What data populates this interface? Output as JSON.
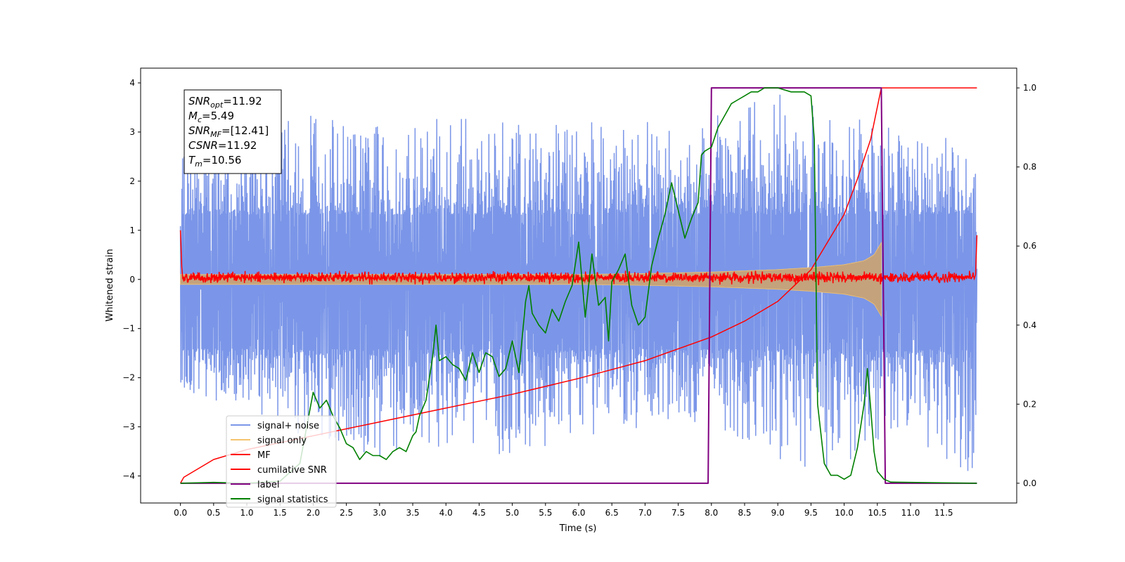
{
  "chart_data": {
    "type": "line",
    "xlabel": "Time (s)",
    "ylabel": "Whitened strain",
    "xlim": [
      -0.6,
      12.6
    ],
    "ylim": [
      -4.55,
      4.3
    ],
    "ylim_right": [
      -0.05,
      1.05
    ],
    "grid": false,
    "legend_position": "lower-left",
    "x_ticks": [
      0.0,
      0.5,
      1.0,
      1.5,
      2.0,
      2.5,
      3.0,
      3.5,
      4.0,
      4.5,
      5.0,
      5.5,
      6.0,
      6.5,
      7.0,
      7.5,
      8.0,
      8.5,
      9.0,
      9.5,
      10.0,
      10.5,
      11.0,
      11.5
    ],
    "x_tick_labels": [
      "0.0",
      "0.5",
      "1.0",
      "1.5",
      "2.0",
      "2.5",
      "3.0",
      "3.5",
      "4.0",
      "4.5",
      "5.0",
      "5.5",
      "6.0",
      "6.5",
      "7.0",
      "7.5",
      "8.0",
      "8.5",
      "9.0",
      "9.5",
      "10.0",
      "10.5",
      "11.0",
      "11.5"
    ],
    "y_ticks": [
      -4,
      -3,
      -2,
      -1,
      0,
      1,
      2,
      3,
      4
    ],
    "y_tick_labels": [
      "−4",
      "−3",
      "−2",
      "−1",
      "0",
      "1",
      "2",
      "3",
      "4"
    ],
    "y_ticks_right": [
      0.0,
      0.2,
      0.4,
      0.6,
      0.8,
      1.0
    ],
    "y_tick_labels_right": [
      "0.0",
      "0.2",
      "0.4",
      "0.6",
      "0.8",
      "1.0"
    ],
    "stats_box": [
      {
        "base": "SNR",
        "sub": "opt",
        "value": "=11.92"
      },
      {
        "base": "M",
        "sub": "c",
        "value": "=5.49"
      },
      {
        "base": "SNR",
        "sub": "MF",
        "value": "=[12.41]"
      },
      {
        "base": "CSNR",
        "sub": "",
        "value": "=11.92"
      },
      {
        "base": "T",
        "sub": "m",
        "value": "=10.56"
      }
    ],
    "series": [
      {
        "name": "signal+ noise",
        "color": "#7b96e8",
        "axis": "left",
        "x_range": [
          0.0,
          12.0
        ],
        "envelope": {
          "x": [
            0.0,
            1.0,
            2.0,
            3.0,
            4.0,
            5.0,
            6.0,
            7.0,
            8.0,
            9.0,
            10.0,
            11.0,
            12.0
          ],
          "dense_upper": [
            1.3,
            1.3,
            1.3,
            1.3,
            1.3,
            1.3,
            1.3,
            1.3,
            1.3,
            1.3,
            1.3,
            1.3,
            1.3
          ],
          "dense_lower": [
            -1.4,
            -1.4,
            -1.4,
            -1.4,
            -1.4,
            -1.4,
            -1.4,
            -1.4,
            -1.4,
            -1.4,
            -1.4,
            -1.4,
            -1.4
          ],
          "peak_upper": [
            3.5,
            3.3,
            3.4,
            3.3,
            3.4,
            3.2,
            3.3,
            3.2,
            3.4,
            3.9,
            3.4,
            3.0,
            2.9
          ],
          "peak_lower": [
            -2.2,
            -2.8,
            -3.3,
            -3.7,
            -3.4,
            -3.6,
            -3.2,
            -3.0,
            -2.9,
            -3.8,
            -3.9,
            -3.2,
            -4.1
          ]
        }
      },
      {
        "name": "signal only",
        "color": "#f5c46e",
        "axis": "left",
        "envelope": {
          "x": [
            0.0,
            2.0,
            4.0,
            6.0,
            7.0,
            8.0,
            9.0,
            9.5,
            10.0,
            10.3,
            10.45,
            10.56
          ],
          "amp": [
            0.1,
            0.1,
            0.1,
            0.1,
            0.12,
            0.15,
            0.2,
            0.24,
            0.3,
            0.38,
            0.5,
            0.75
          ]
        }
      },
      {
        "name": "MF",
        "color": "#ff0000",
        "axis": "left",
        "x_range": [
          0.0,
          12.0
        ],
        "start_value": 1.0,
        "end_value": 0.9,
        "noise_band": [
          -0.12,
          0.18
        ]
      },
      {
        "name": "cumilative SNR",
        "color": "#ff0000",
        "axis": "right",
        "x": [
          0.0,
          0.05,
          0.5,
          1.0,
          2.0,
          3.0,
          4.0,
          5.0,
          6.0,
          7.0,
          8.0,
          8.5,
          9.0,
          9.5,
          10.0,
          10.2,
          10.4,
          10.56,
          12.0
        ],
        "y": [
          0.0,
          0.015,
          0.06,
          0.085,
          0.12,
          0.155,
          0.19,
          0.225,
          0.265,
          0.31,
          0.37,
          0.41,
          0.46,
          0.54,
          0.68,
          0.77,
          0.87,
          1.0,
          1.0
        ]
      },
      {
        "name": "label",
        "color": "#800080",
        "axis": "right",
        "x": [
          0.0,
          7.95,
          8.0,
          10.56,
          10.62,
          12.0
        ],
        "y": [
          0.0,
          0.0,
          1.0,
          1.0,
          0.0,
          0.0
        ]
      },
      {
        "name": "signal statistics",
        "color": "#008000",
        "axis": "right",
        "x": [
          0.0,
          0.5,
          1.0,
          1.5,
          1.8,
          2.0,
          2.1,
          2.2,
          2.3,
          2.4,
          2.5,
          2.6,
          2.7,
          2.8,
          2.9,
          3.0,
          3.1,
          3.2,
          3.3,
          3.4,
          3.5,
          3.55,
          3.6,
          3.7,
          3.8,
          3.85,
          3.9,
          4.0,
          4.1,
          4.2,
          4.3,
          4.4,
          4.5,
          4.6,
          4.7,
          4.8,
          4.9,
          5.0,
          5.1,
          5.2,
          5.25,
          5.3,
          5.4,
          5.5,
          5.6,
          5.7,
          5.8,
          5.9,
          6.0,
          6.1,
          6.2,
          6.3,
          6.4,
          6.45,
          6.5,
          6.6,
          6.7,
          6.8,
          6.9,
          7.0,
          7.1,
          7.2,
          7.3,
          7.4,
          7.5,
          7.6,
          7.7,
          7.8,
          7.85,
          7.9,
          8.0,
          8.1,
          8.2,
          8.3,
          8.4,
          8.5,
          8.6,
          8.7,
          8.8,
          8.9,
          9.0,
          9.2,
          9.4,
          9.5,
          9.55,
          9.6,
          9.7,
          9.8,
          9.9,
          10.0,
          10.1,
          10.2,
          10.3,
          10.35,
          10.4,
          10.45,
          10.5,
          10.6,
          10.7,
          11.0,
          11.5,
          12.0
        ],
        "y": [
          0.0,
          0.002,
          0.0,
          0.005,
          0.05,
          0.23,
          0.19,
          0.21,
          0.17,
          0.14,
          0.1,
          0.09,
          0.06,
          0.08,
          0.07,
          0.07,
          0.06,
          0.08,
          0.09,
          0.08,
          0.12,
          0.13,
          0.17,
          0.21,
          0.32,
          0.4,
          0.31,
          0.32,
          0.3,
          0.29,
          0.26,
          0.33,
          0.28,
          0.33,
          0.32,
          0.27,
          0.29,
          0.36,
          0.28,
          0.46,
          0.5,
          0.43,
          0.4,
          0.38,
          0.44,
          0.41,
          0.46,
          0.5,
          0.61,
          0.42,
          0.58,
          0.45,
          0.47,
          0.36,
          0.51,
          0.54,
          0.58,
          0.45,
          0.4,
          0.42,
          0.55,
          0.62,
          0.68,
          0.76,
          0.69,
          0.62,
          0.67,
          0.71,
          0.83,
          0.84,
          0.85,
          0.9,
          0.93,
          0.96,
          0.97,
          0.98,
          0.99,
          0.99,
          1.0,
          1.0,
          1.0,
          0.99,
          0.99,
          0.98,
          0.87,
          0.2,
          0.05,
          0.02,
          0.02,
          0.01,
          0.02,
          0.09,
          0.2,
          0.29,
          0.19,
          0.08,
          0.03,
          0.01,
          0.003,
          0.002,
          0.001,
          0.0
        ]
      }
    ]
  }
}
